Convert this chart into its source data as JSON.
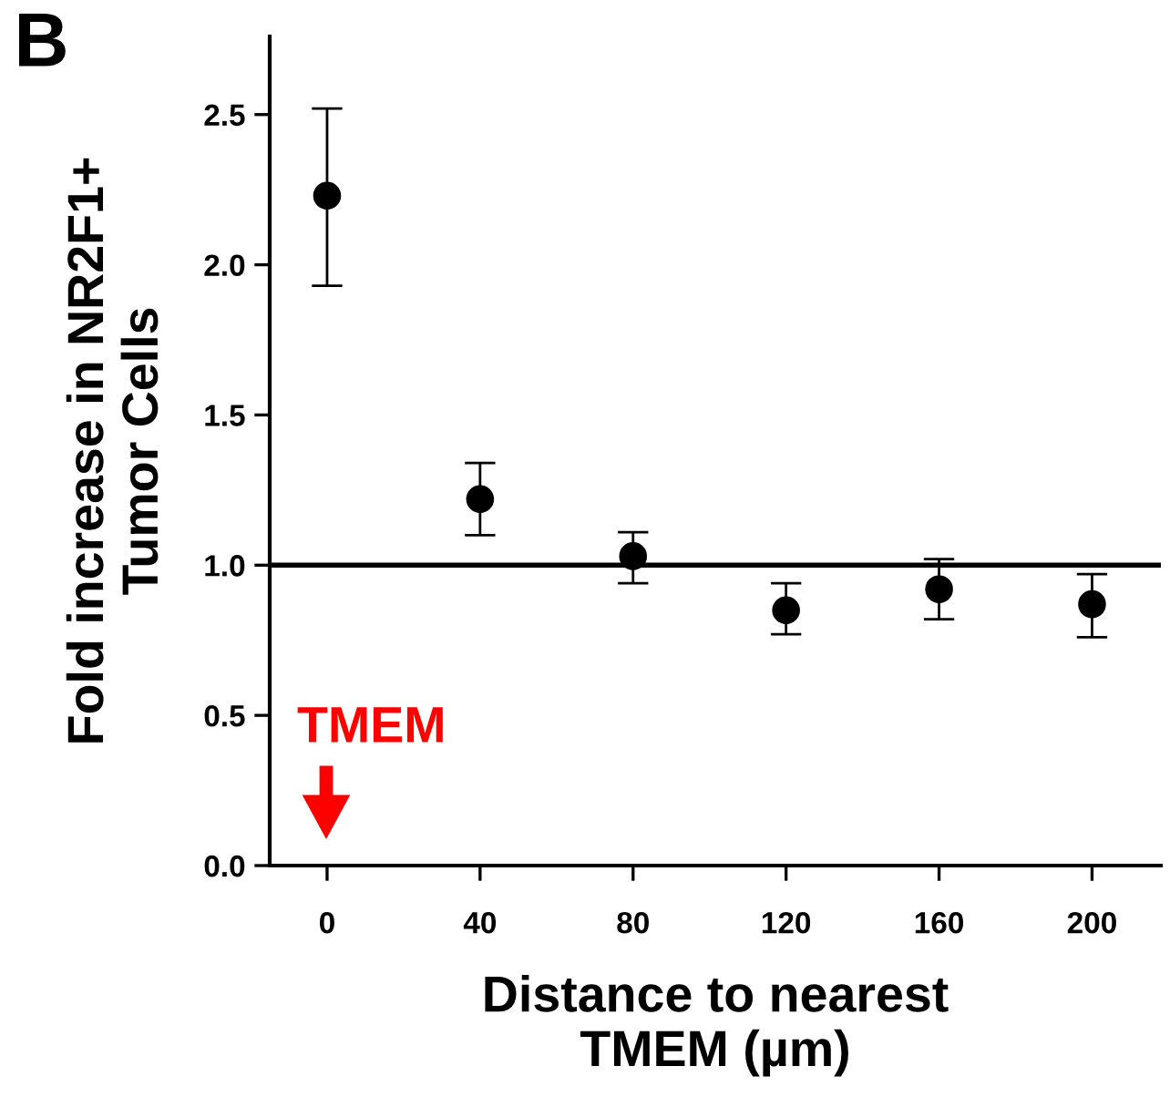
{
  "chart_data": {
    "type": "scatter",
    "xlabel": "Distance to nearest\nTMEM (µm)",
    "ylabel": "Fold increase in NR2F1+\nTumor Cells",
    "x": [
      0,
      40,
      80,
      120,
      160,
      200
    ],
    "values": [
      2.23,
      1.22,
      1.03,
      0.85,
      0.92,
      0.87
    ],
    "errors": [
      [
        1.93,
        2.52
      ],
      [
        1.1,
        1.34
      ],
      [
        0.94,
        1.11
      ],
      [
        0.77,
        0.94
      ],
      [
        0.82,
        1.02
      ],
      [
        0.76,
        0.97
      ]
    ],
    "color": "#000000",
    "marker": "circle",
    "xlim": [
      -15,
      218
    ],
    "xticks": [
      0,
      40,
      80,
      120,
      160,
      200
    ],
    "ylim": [
      0,
      2.76
    ],
    "yticks": [
      {
        "value": 0,
        "label": "0.0"
      },
      {
        "value": 0.5,
        "label": "0.5"
      },
      {
        "value": 1,
        "label": "1.0"
      },
      {
        "value": 1.5,
        "label": "1.5"
      },
      {
        "value": 2,
        "label": "2.0"
      },
      {
        "value": 2.5,
        "label": "2.5"
      }
    ],
    "ref_lines": [
      {
        "axis": "y",
        "value": 1,
        "color": "#000000"
      }
    ],
    "annotations": [
      "B",
      "TMEM"
    ],
    "grid": false,
    "legend": false
  }
}
